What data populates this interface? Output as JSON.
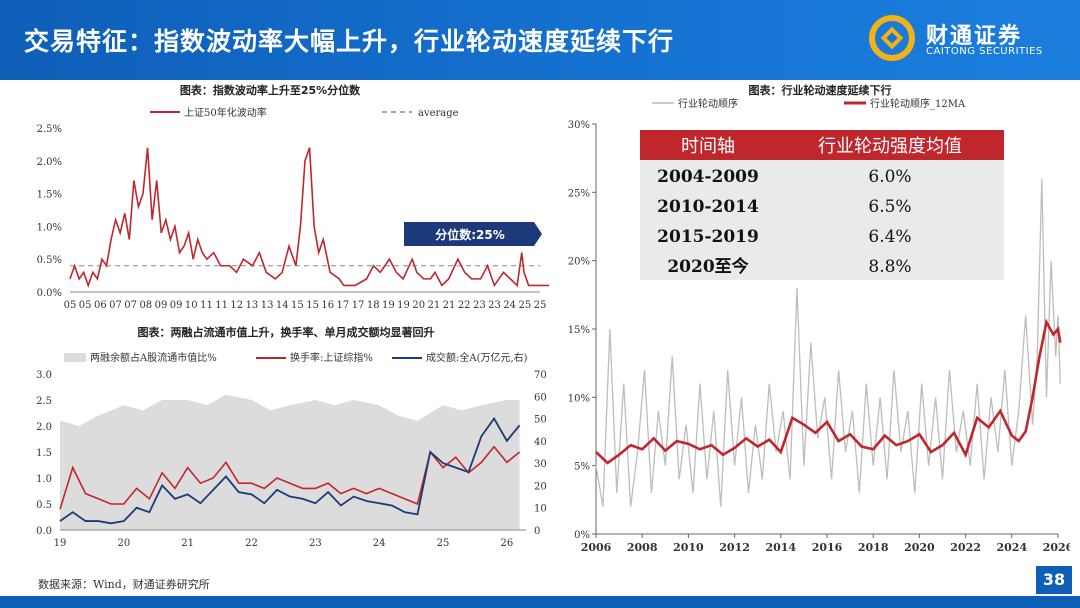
{
  "header": {
    "title": "交易特征：指数波动率大幅上升，行业轮动速度延续下行",
    "logo_cn": "财通证券",
    "logo_en": "CAITONG SECURITIES"
  },
  "footer": {
    "source": "数据来源：Wind，财通证券研究所",
    "page": "38"
  },
  "colors": {
    "red": "#c0272d",
    "navy": "#1c3a7a",
    "gray_line": "#b8b8b8",
    "area": "#dcdcdc",
    "brand": "#0e5fb8"
  },
  "chart_data": [
    {
      "type": "line",
      "title": "图表：指数波动率上升至25%分位数",
      "series": [
        {
          "name": "上证50年化波动率",
          "color": "#c0272d",
          "x": [
            2005,
            2005.2,
            2005.4,
            2005.6,
            2005.8,
            2006,
            2006.2,
            2006.4,
            2006.6,
            2006.8,
            2007,
            2007.2,
            2007.4,
            2007.6,
            2007.8,
            2008,
            2008.2,
            2008.4,
            2008.6,
            2008.8,
            2009,
            2009.2,
            2009.4,
            2009.6,
            2009.8,
            2010,
            2010.2,
            2010.4,
            2010.6,
            2010.8,
            2011,
            2011.3,
            2011.6,
            2012,
            2012.3,
            2012.6,
            2013,
            2013.3,
            2013.6,
            2014,
            2014.3,
            2014.6,
            2014.9,
            2015.1,
            2015.3,
            2015.5,
            2015.7,
            2015.9,
            2016.1,
            2016.4,
            2016.8,
            2017,
            2017.5,
            2018,
            2018.3,
            2018.6,
            2019,
            2019.3,
            2019.6,
            2020,
            2020.2,
            2020.5,
            2020.8,
            2021,
            2021.3,
            2021.6,
            2022,
            2022.3,
            2022.6,
            2023,
            2023.3,
            2023.6,
            2024,
            2024.3,
            2024.6,
            2024.8,
            2024.9,
            2025.1,
            2025.4,
            2025.7,
            2026
          ],
          "values": [
            0.2,
            0.4,
            0.2,
            0.3,
            0.1,
            0.3,
            0.2,
            0.5,
            0.4,
            0.8,
            1.1,
            0.9,
            1.2,
            0.8,
            1.7,
            1.3,
            1.5,
            2.2,
            1.1,
            1.7,
            0.9,
            1.1,
            0.8,
            1.0,
            0.6,
            0.7,
            0.9,
            0.5,
            0.8,
            0.6,
            0.5,
            0.6,
            0.4,
            0.4,
            0.3,
            0.5,
            0.4,
            0.6,
            0.3,
            0.2,
            0.3,
            0.7,
            0.4,
            1.0,
            2.0,
            2.2,
            1.0,
            0.6,
            0.8,
            0.3,
            0.2,
            0.1,
            0.1,
            0.2,
            0.4,
            0.3,
            0.5,
            0.3,
            0.2,
            0.5,
            0.3,
            0.2,
            0.2,
            0.3,
            0.1,
            0.2,
            0.5,
            0.3,
            0.2,
            0.2,
            0.4,
            0.1,
            0.3,
            0.2,
            0.1,
            0.6,
            0.3,
            0.1,
            0.1,
            0.1,
            0.1
          ]
        },
        {
          "name": "average",
          "dashed": true,
          "color": "#888888",
          "values": [
            0.4
          ]
        }
      ],
      "xticks": [
        "05",
        "05",
        "06",
        "07",
        "07",
        "08",
        "09",
        "09",
        "10",
        "11",
        "11",
        "12",
        "13",
        "13",
        "14",
        "15",
        "15",
        "16",
        "17",
        "17",
        "18",
        "19",
        "19",
        "20",
        "21",
        "21",
        "22",
        "23",
        "23",
        "24",
        "25",
        "25"
      ],
      "ylim": [
        0,
        2.5
      ],
      "yticks": [
        "0.0%",
        "0.5%",
        "1.0%",
        "1.5%",
        "2.0%",
        "2.5%"
      ],
      "annotation": "分位数:25%"
    },
    {
      "type": "line",
      "title": "图表：两融占流通市值上升，换手率、单月成交额均显著回升",
      "area_series": {
        "name": "两融余额占A股流通市值比%",
        "color": "#dcdcdc",
        "x": [
          2019,
          2019.3,
          2019.6,
          2020,
          2020.3,
          2020.6,
          2021,
          2021.3,
          2021.6,
          2022,
          2022.3,
          2022.6,
          2023,
          2023.3,
          2023.6,
          2024,
          2024.3,
          2024.6,
          2025,
          2025.3,
          2025.6,
          2026,
          2026.2
        ],
        "values": [
          2.1,
          2.0,
          2.2,
          2.4,
          2.3,
          2.5,
          2.5,
          2.4,
          2.6,
          2.5,
          2.3,
          2.4,
          2.5,
          2.4,
          2.5,
          2.4,
          2.2,
          2.1,
          2.4,
          2.3,
          2.4,
          2.5,
          2.5
        ]
      },
      "series": [
        {
          "name": "换手率:上证综指%",
          "color": "#c0272d",
          "axis": "left",
          "x": [
            2019,
            2019.2,
            2019.4,
            2019.6,
            2019.8,
            2020,
            2020.2,
            2020.4,
            2020.6,
            2020.8,
            2021,
            2021.2,
            2021.4,
            2021.6,
            2021.8,
            2022,
            2022.2,
            2022.4,
            2022.6,
            2022.8,
            2023,
            2023.2,
            2023.4,
            2023.6,
            2023.8,
            2024,
            2024.2,
            2024.4,
            2024.6,
            2024.8,
            2025,
            2025.2,
            2025.4,
            2025.6,
            2025.8,
            2026,
            2026.2
          ],
          "values": [
            0.4,
            1.2,
            0.7,
            0.6,
            0.5,
            0.5,
            0.8,
            0.6,
            1.1,
            0.8,
            1.2,
            0.9,
            1.0,
            1.3,
            0.9,
            0.9,
            0.8,
            1.0,
            0.9,
            0.8,
            0.8,
            0.9,
            0.7,
            0.8,
            0.7,
            0.8,
            0.7,
            0.6,
            0.5,
            1.5,
            1.2,
            1.4,
            1.1,
            1.3,
            1.6,
            1.3,
            1.5
          ]
        },
        {
          "name": "成交额:全A(万亿元,右)",
          "color": "#1c3a7a",
          "axis": "right",
          "x": [
            2019,
            2019.2,
            2019.4,
            2019.6,
            2019.8,
            2020,
            2020.2,
            2020.4,
            2020.6,
            2020.8,
            2021,
            2021.2,
            2021.4,
            2021.6,
            2021.8,
            2022,
            2022.2,
            2022.4,
            2022.6,
            2022.8,
            2023,
            2023.2,
            2023.4,
            2023.6,
            2023.8,
            2024,
            2024.2,
            2024.4,
            2024.6,
            2024.8,
            2025,
            2025.2,
            2025.4,
            2025.6,
            2025.8,
            2026,
            2026.2
          ],
          "values": [
            4,
            8,
            4,
            4,
            3,
            4,
            10,
            8,
            20,
            14,
            16,
            12,
            18,
            24,
            17,
            16,
            12,
            18,
            15,
            14,
            12,
            17,
            11,
            15,
            13,
            12,
            11,
            8,
            7,
            35,
            30,
            28,
            26,
            42,
            50,
            40,
            47
          ]
        }
      ],
      "xticks": [
        "19",
        "20",
        "21",
        "22",
        "23",
        "24",
        "25",
        "26"
      ],
      "ylim_left": [
        0,
        3.0
      ],
      "yticks_left": [
        "0.0",
        "0.5",
        "1.0",
        "1.5",
        "2.0",
        "2.5",
        "3.0"
      ],
      "ylim_right": [
        0,
        70
      ],
      "yticks_right": [
        "0",
        "10",
        "20",
        "30",
        "40",
        "50",
        "60",
        "70"
      ]
    },
    {
      "type": "line",
      "title": "图表：行业轮动速度延续下行",
      "series": [
        {
          "name": "行业轮动顺序",
          "color": "#b8b8b8",
          "x": [
            2006,
            2006.3,
            2006.6,
            2006.9,
            2007.2,
            2007.5,
            2007.8,
            2008.1,
            2008.4,
            2008.7,
            2009,
            2009.3,
            2009.6,
            2009.9,
            2010.2,
            2010.5,
            2010.8,
            2011.1,
            2011.4,
            2011.7,
            2012,
            2012.3,
            2012.6,
            2012.9,
            2013.2,
            2013.5,
            2013.8,
            2014.1,
            2014.4,
            2014.7,
            2015,
            2015.3,
            2015.6,
            2015.9,
            2016.2,
            2016.5,
            2016.8,
            2017.1,
            2017.4,
            2017.7,
            2018,
            2018.3,
            2018.6,
            2018.9,
            2019.2,
            2019.5,
            2019.8,
            2020.1,
            2020.4,
            2020.7,
            2021,
            2021.3,
            2021.6,
            2021.9,
            2022.2,
            2022.5,
            2022.8,
            2023.1,
            2023.4,
            2023.7,
            2024,
            2024.3,
            2024.6,
            2024.9,
            2025.1,
            2025.3,
            2025.5,
            2025.7,
            2025.9,
            2026,
            2026.1
          ],
          "values": [
            5,
            2,
            15,
            3,
            11,
            2,
            6,
            12,
            3,
            9,
            5,
            13,
            4,
            8,
            3,
            11,
            4,
            9,
            2,
            12,
            5,
            10,
            3,
            8,
            4,
            11,
            6,
            9,
            4,
            18,
            5,
            14,
            7,
            10,
            4,
            12,
            6,
            9,
            3,
            11,
            5,
            10,
            4,
            12,
            6,
            9,
            3,
            11,
            5,
            10,
            4,
            12,
            6,
            9,
            5,
            11,
            4,
            10,
            6,
            12,
            5,
            9,
            16,
            8,
            13,
            26,
            10,
            20,
            13,
            16,
            11
          ]
        },
        {
          "name": "行业轮动顺序_12MA",
          "color": "#c0272d",
          "x": [
            2006,
            2006.5,
            2007,
            2007.5,
            2008,
            2008.5,
            2009,
            2009.5,
            2010,
            2010.5,
            2011,
            2011.5,
            2012,
            2012.5,
            2013,
            2013.5,
            2014,
            2014.5,
            2015,
            2015.5,
            2016,
            2016.5,
            2017,
            2017.5,
            2018,
            2018.5,
            2019,
            2019.5,
            2020,
            2020.5,
            2021,
            2021.5,
            2022,
            2022.5,
            2023,
            2023.5,
            2024,
            2024.3,
            2024.6,
            2024.9,
            2025.2,
            2025.5,
            2025.8,
            2026,
            2026.1
          ],
          "values": [
            6.0,
            5.2,
            5.8,
            6.5,
            6.2,
            7.0,
            6.1,
            6.8,
            6.6,
            6.2,
            6.5,
            5.8,
            6.3,
            7.0,
            6.4,
            6.9,
            6.0,
            8.5,
            8.0,
            7.4,
            8.2,
            6.8,
            7.3,
            6.4,
            6.2,
            7.2,
            6.5,
            6.8,
            7.3,
            6.0,
            6.5,
            7.4,
            5.8,
            8.5,
            7.8,
            9.0,
            7.2,
            6.8,
            7.5,
            10.0,
            13.0,
            15.5,
            14.6,
            15.0,
            14.0
          ]
        }
      ],
      "xticks": [
        "2006",
        "2008",
        "2010",
        "2012",
        "2014",
        "2016",
        "2018",
        "2020",
        "2022",
        "2024",
        "2026"
      ],
      "ylim": [
        0,
        30
      ],
      "yticks": [
        "0%",
        "5%",
        "10%",
        "15%",
        "20%",
        "25%",
        "30%"
      ],
      "table": {
        "headers": [
          "时间轴",
          "行业轮动强度均值"
        ],
        "rows": [
          [
            "2004-2009",
            "6.0%"
          ],
          [
            "2010-2014",
            "6.5%"
          ],
          [
            "2015-2019",
            "6.4%"
          ],
          [
            "2020至今",
            "8.8%"
          ]
        ]
      }
    }
  ]
}
